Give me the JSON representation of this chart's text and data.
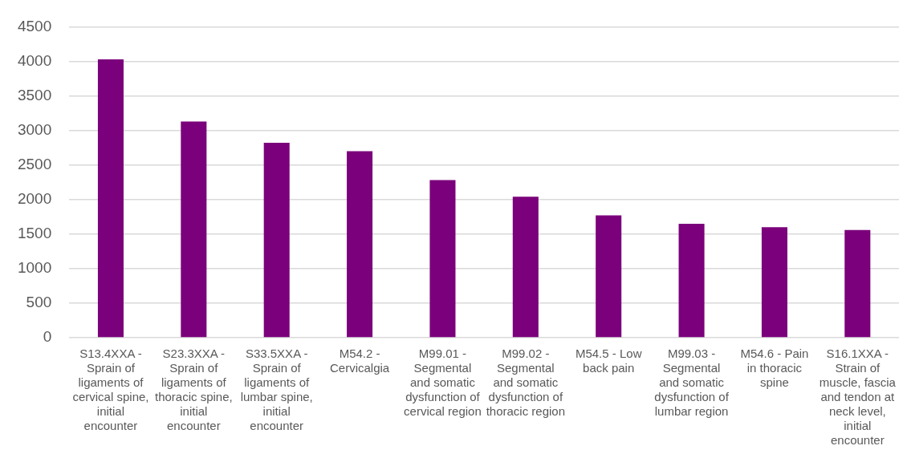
{
  "chart_data": {
    "type": "bar",
    "categories": [
      "S13.4XXA - Sprain of ligaments of cervical spine, initial encounter",
      "S23.3XXA - Sprain of ligaments of thoracic spine, initial encounter",
      "S33.5XXA - Sprain of ligaments of lumbar spine, initial encounter",
      "M54.2 - Cervicalgia",
      "M99.01 - Segmental and somatic dysfunction of cervical region",
      "M99.02 - Segmental and somatic dysfunction of thoracic region",
      "M54.5 - Low back pain",
      "M99.03 - Segmental and somatic dysfunction of lumbar region",
      "M54.6 - Pain in thoracic spine",
      "S16.1XXA - Strain of muscle, fascia and tendon at neck level, initial encounter"
    ],
    "values": [
      4030,
      3130,
      2820,
      2700,
      2280,
      2040,
      1770,
      1650,
      1600,
      1560
    ],
    "color": "#7b007b",
    "ylim": [
      0,
      4500
    ],
    "yticks": [
      0,
      500,
      1000,
      1500,
      2000,
      2500,
      3000,
      3500,
      4000,
      4500
    ],
    "grid": "y",
    "legend": false
  }
}
